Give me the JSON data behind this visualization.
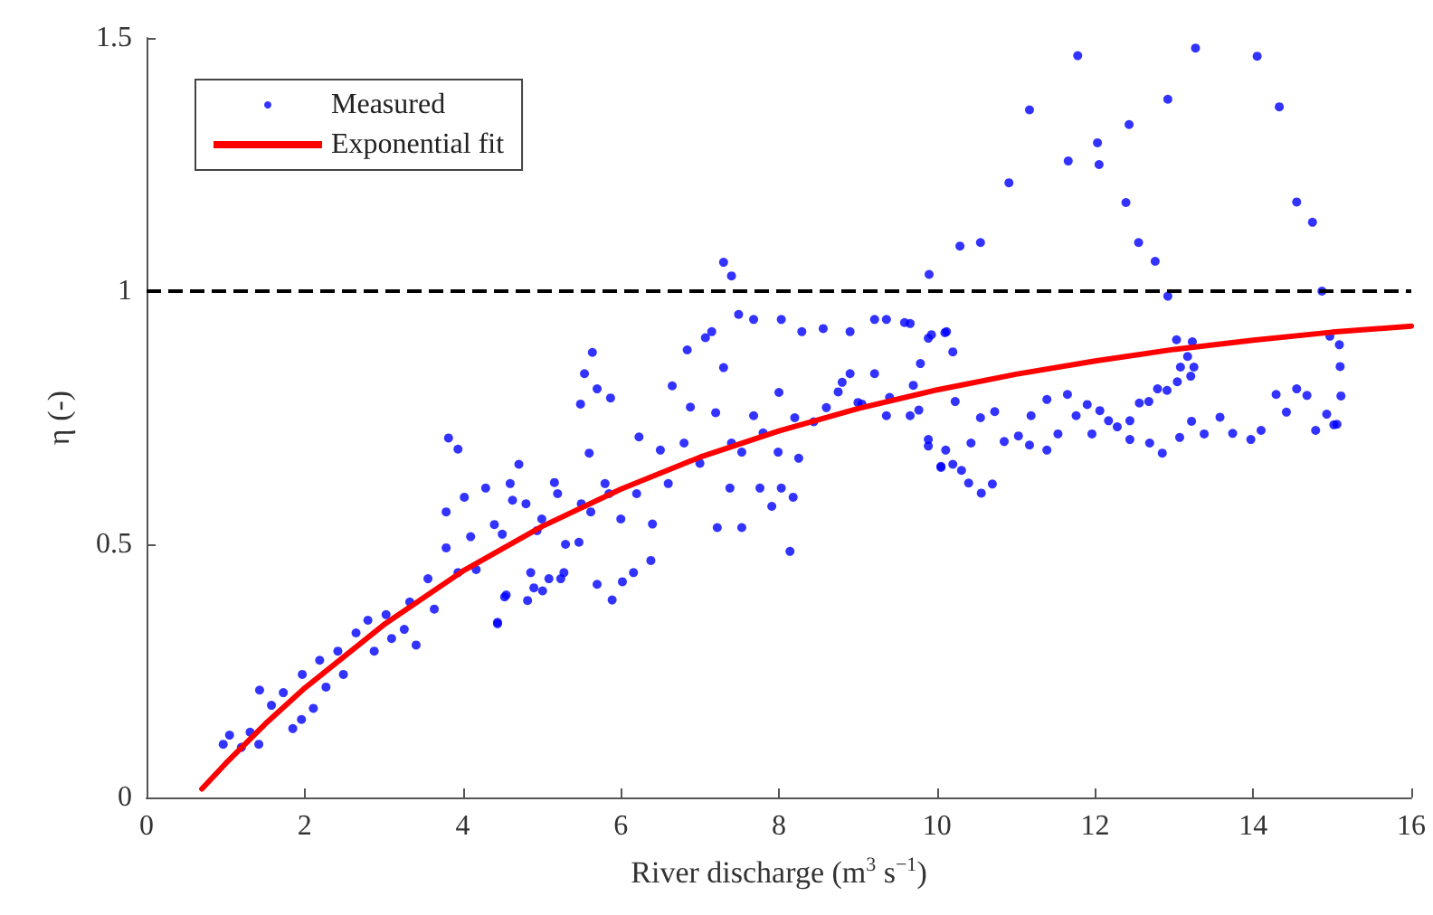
{
  "chart_data": {
    "type": "scatter",
    "xlabel": "River discharge (m$^{3}$ s$^{−1}$)",
    "ylabel": "η (-)",
    "xlim": [
      0,
      16
    ],
    "xticks": [
      0,
      2,
      4,
      6,
      8,
      10,
      12,
      14,
      16
    ],
    "ylim": [
      0,
      1.5
    ],
    "yticks": [
      0,
      0.5,
      1,
      1.5
    ],
    "grid": false,
    "legend": "top left",
    "ref_lines": [
      {
        "axis": "y",
        "value": 1,
        "color": "#000000",
        "line_style": "dashed"
      }
    ],
    "series": [
      {
        "name": "Measured",
        "marker": "circle",
        "color": "#0000ff",
        "x": [
          11.78,
          13.27,
          14.05,
          11.17,
          14.33,
          12.92,
          12.43,
          12.03,
          12.05,
          11.66,
          10.91,
          12.39,
          14.55,
          14.75,
          12.55,
          12.76,
          10.29,
          10.55,
          9.9,
          14.87,
          12.92,
          9.66,
          9.89,
          10.1,
          10.2,
          9.79,
          9.7,
          10.23,
          9.77,
          9.89,
          10.11,
          10.05,
          10.31,
          10.4,
          10.56,
          10.7,
          10.43,
          10.55,
          10.73,
          10.85,
          11.03,
          11.17,
          11.19,
          11.39,
          11.39,
          11.53,
          11.65,
          11.76,
          11.9,
          11.96,
          12.06,
          12.17,
          12.28,
          12.44,
          12.44,
          12.56,
          12.68,
          12.69,
          12.79,
          12.85,
          12.91,
          13.03,
          13.04,
          13.08,
          13.17,
          13.21,
          13.23,
          13.25,
          13.07,
          13.22,
          13.38,
          13.58,
          13.74,
          13.97,
          14.1,
          14.29,
          14.42,
          14.55,
          14.68,
          14.79,
          14.93,
          14.97,
          15.02,
          15.06,
          15.09,
          15.1,
          15.11,
          0.97,
          1.05,
          1.2,
          1.31,
          1.42,
          1.43,
          1.58,
          1.73,
          1.85,
          1.96,
          1.97,
          2.11,
          2.19,
          2.27,
          2.42,
          2.49,
          2.65,
          2.8,
          2.88,
          3.03,
          3.1,
          3.26,
          3.33,
          3.41,
          3.56,
          3.64,
          3.79,
          3.79,
          3.94,
          4.02,
          4.1,
          4.17,
          4.29,
          4.4,
          4.44,
          4.53,
          4.63,
          4.71,
          4.86,
          4.94,
          5.01,
          5.16,
          5.24,
          5.47,
          5.62,
          5.7,
          5.85,
          3.82,
          3.94,
          4.44,
          4.55,
          4.82,
          4.9,
          5.09,
          5.28,
          5.54,
          5.64,
          5.7,
          5.49,
          5.87,
          5.89,
          6.02,
          6.23,
          6.16,
          6.38,
          6.5,
          6.65,
          6.88,
          6.84,
          7.15,
          7.07,
          7.3,
          7.49,
          7.68,
          8.03,
          8.29,
          8.14,
          7.53,
          7.22,
          7.38,
          7.76,
          8.03,
          7.91,
          8.18,
          7.68,
          7.53,
          7.99,
          8.25,
          8.44,
          8.56,
          8.9,
          9.21,
          9.36,
          9.59,
          8.75,
          9.05,
          9.36,
          9.66,
          9.89,
          10.05,
          10.2,
          9.93,
          10.12,
          8.9,
          9.21,
          4.5,
          4.8,
          5.2,
          5.5,
          5.8,
          6.2,
          6.6,
          7.0,
          7.4,
          7.8,
          8.2,
          8.6,
          9.0,
          9.4,
          5.0,
          6.0,
          5.3,
          6.4,
          4.6,
          5.6,
          6.8,
          7.2,
          8.0,
          8.8,
          7.3,
          7.4
        ],
        "values": [
          1.465,
          1.48,
          1.464,
          1.358,
          1.364,
          1.379,
          1.329,
          1.293,
          1.25,
          1.257,
          1.214,
          1.175,
          1.176,
          1.136,
          1.096,
          1.059,
          1.089,
          1.096,
          1.033,
          1.0,
          0.99,
          0.936,
          0.907,
          0.918,
          0.88,
          0.857,
          0.814,
          0.782,
          0.765,
          0.707,
          0.686,
          0.654,
          0.646,
          0.621,
          0.601,
          0.619,
          0.7,
          0.75,
          0.762,
          0.703,
          0.714,
          0.696,
          0.754,
          0.686,
          0.786,
          0.718,
          0.796,
          0.754,
          0.776,
          0.718,
          0.764,
          0.744,
          0.732,
          0.707,
          0.744,
          0.779,
          0.782,
          0.7,
          0.807,
          0.68,
          0.804,
          0.904,
          0.821,
          0.85,
          0.871,
          0.832,
          0.9,
          0.85,
          0.711,
          0.743,
          0.718,
          0.751,
          0.719,
          0.707,
          0.725,
          0.796,
          0.761,
          0.807,
          0.794,
          0.725,
          0.757,
          0.911,
          0.736,
          0.737,
          0.894,
          0.851,
          0.793,
          0.105,
          0.123,
          0.099,
          0.129,
          0.105,
          0.212,
          0.182,
          0.207,
          0.136,
          0.154,
          0.243,
          0.176,
          0.271,
          0.218,
          0.289,
          0.243,
          0.325,
          0.35,
          0.289,
          0.361,
          0.314,
          0.332,
          0.386,
          0.301,
          0.432,
          0.372,
          0.493,
          0.564,
          0.444,
          0.593,
          0.515,
          0.45,
          0.611,
          0.539,
          0.343,
          0.396,
          0.587,
          0.658,
          0.444,
          0.527,
          0.408,
          0.622,
          0.432,
          0.504,
          0.564,
          0.421,
          0.6,
          0.71,
          0.688,
          0.346,
          0.4,
          0.389,
          0.414,
          0.432,
          0.444,
          0.837,
          0.879,
          0.807,
          0.777,
          0.789,
          0.39,
          0.426,
          0.712,
          0.444,
          0.468,
          0.686,
          0.813,
          0.771,
          0.884,
          0.92,
          0.908,
          0.849,
          0.954,
          0.944,
          0.944,
          0.92,
          0.486,
          0.533,
          0.533,
          0.611,
          0.611,
          0.611,
          0.575,
          0.593,
          0.754,
          0.682,
          0.682,
          0.67,
          0.742,
          0.926,
          0.92,
          0.944,
          0.944,
          0.938,
          0.801,
          0.777,
          0.754,
          0.754,
          0.694,
          0.652,
          0.658,
          0.914,
          0.92,
          0.837,
          0.837,
          0.52,
          0.58,
          0.6,
          0.58,
          0.62,
          0.6,
          0.62,
          0.66,
          0.7,
          0.72,
          0.75,
          0.77,
          0.78,
          0.79,
          0.55,
          0.55,
          0.5,
          0.54,
          0.62,
          0.68,
          0.7,
          0.76,
          0.8,
          0.82,
          1.057,
          1.03
        ]
      },
      {
        "name": "Exponential fit",
        "type": "line",
        "marker": "none",
        "line_style": "solid",
        "color": "#ff0000",
        "x": [
          0.7,
          1,
          1.5,
          2,
          3,
          4,
          5,
          6,
          7,
          8,
          9,
          10,
          11,
          12,
          13,
          14,
          15,
          16
        ],
        "values": [
          0.017,
          0.067,
          0.145,
          0.216,
          0.341,
          0.447,
          0.535,
          0.609,
          0.672,
          0.724,
          0.768,
          0.805,
          0.836,
          0.862,
          0.885,
          0.903,
          0.919,
          0.931
        ]
      }
    ]
  }
}
